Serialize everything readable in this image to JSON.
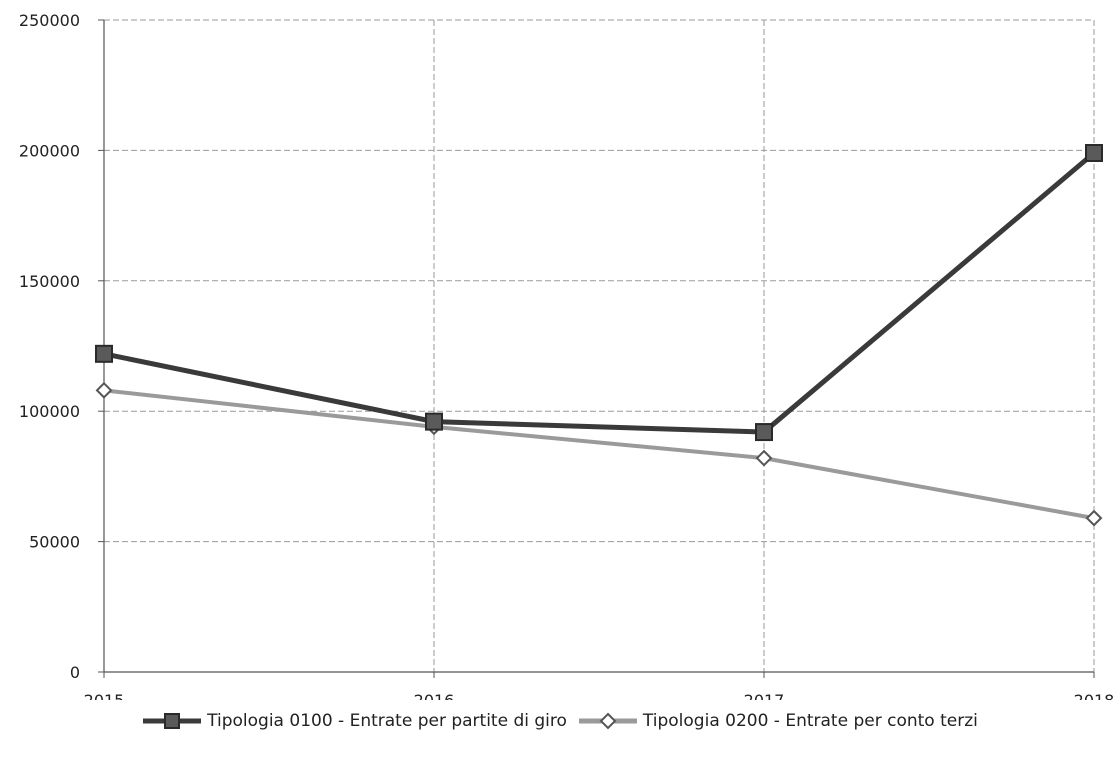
{
  "chart_data": {
    "type": "line",
    "title": "",
    "xlabel": "",
    "ylabel": "",
    "categories": [
      "2015",
      "2016",
      "2017",
      "2018"
    ],
    "ylim": [
      0,
      250000
    ],
    "yticks": [
      "0",
      "50000",
      "100000",
      "150000",
      "200000",
      "250000"
    ],
    "grid": true,
    "legend_position": "bottom",
    "series": [
      {
        "name": "Tipologia 0100 - Entrate per partite di giro",
        "values": [
          122000,
          96000,
          92000,
          199000
        ],
        "color": "#3a3a3a",
        "marker": "square"
      },
      {
        "name": "Tipologia 0200 - Entrate per conto terzi",
        "values": [
          108000,
          94000,
          82000,
          59000
        ],
        "color": "#9a9a9a",
        "marker": "diamond"
      }
    ]
  }
}
